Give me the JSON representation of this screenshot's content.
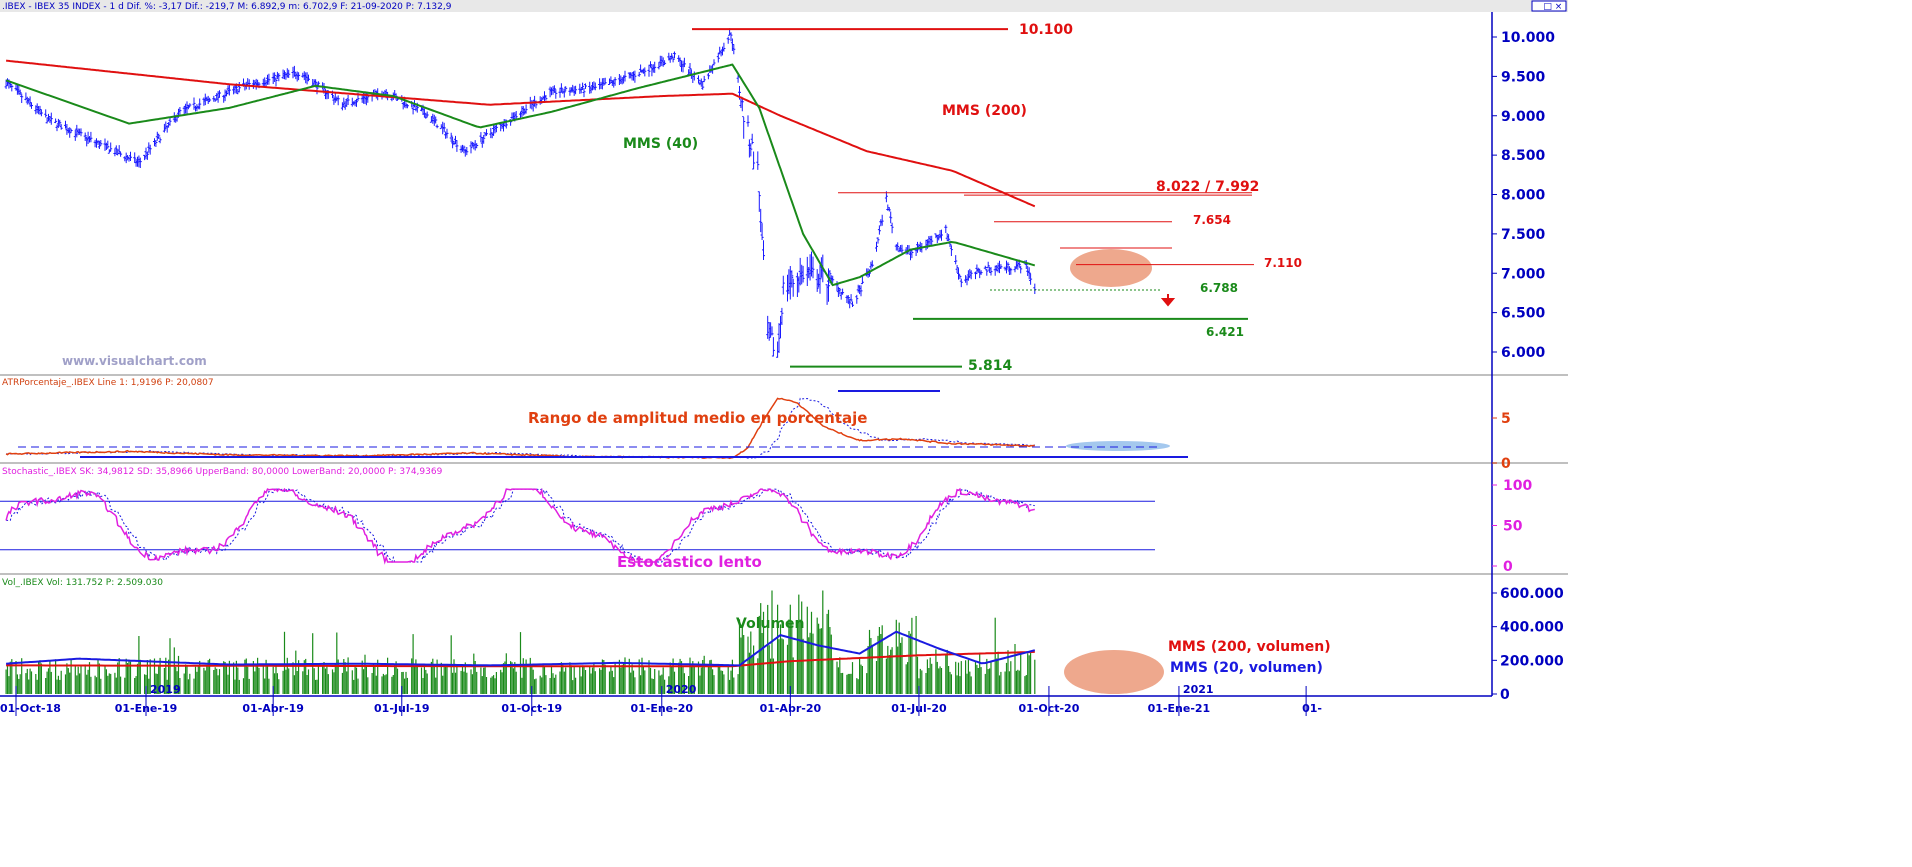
{
  "headers": {
    "price": ".IBEX - IBEX 35 INDEX - 1 d Dif. %: -3,17  Dif.: -219,7  M: 6.892,9  m: 6.702,9  F: 21-09-2020  P: 7.132,9",
    "atr": "ATRPorcentaje_.IBEX  Line 1: 1,9196  P: 20,0807",
    "stoch": "Stochastic_.IBEX  SK: 34,9812  SD: 35,8966  UpperBand: 80,0000  LowerBand: 20,0000  P: 374,9369",
    "vol": "Vol_.IBEX  Vol: 131.752  P: 2.509.030"
  },
  "watermark": "www.visualchart.com",
  "window_controls": "_ □ ×",
  "colors": {
    "bars": "#1a1aff",
    "sma40": "#1a8a1a",
    "sma200": "#e01010",
    "atr": "#e04010",
    "stoch": "#e020e0",
    "vol": "#1a8a1a",
    "vol_sma20": "#1a1ae0",
    "axis": "#0000c0"
  },
  "annotations": {
    "level_10100": "10.100",
    "mms200": "MMS (200)",
    "mms40": "MMS (40)",
    "level_8022": "8.022 / 7.992",
    "level_7654": "7.654",
    "level_7110": "7.110",
    "level_6788": "6.788",
    "level_6421": "6.421",
    "level_5814": "5.814",
    "atr_label": "Rango de amplitud medio en porcentaje",
    "stoch_label": "Estocástico lento",
    "vol_label": "Volumen",
    "vol_sma200": "MMS (200, volumen)",
    "vol_sma20": "MMS (20, volumen)"
  },
  "x_axis": {
    "labels": [
      "01-Oct-18",
      "01-Ene-19",
      "01-Abr-19",
      "01-Jul-19",
      "01-Oct-19",
      "01-Ene-20",
      "01-Abr-20",
      "01-Jul-20",
      "01-Oct-20",
      "01-Ene-21",
      "01-"
    ],
    "year_markers": [
      "2019",
      "2020",
      "2021"
    ]
  },
  "chart_data": [
    {
      "type": "ohlc",
      "name": "price",
      "y_ticks": [
        "10.000",
        "9.500",
        "9.000",
        "8.500",
        "8.000",
        "7.500",
        "7.000",
        "6.500",
        "6.000"
      ],
      "ylim": [
        5800,
        10200
      ],
      "anchors": [
        {
          "date": "2018-09-24",
          "close": 9420
        },
        {
          "date": "2018-10-24",
          "close": 8950
        },
        {
          "date": "2018-12-27",
          "close": 8400
        },
        {
          "date": "2019-01-25",
          "close": 9050
        },
        {
          "date": "2019-03-15",
          "close": 9400
        },
        {
          "date": "2019-04-20",
          "close": 9550
        },
        {
          "date": "2019-05-20",
          "close": 9150
        },
        {
          "date": "2019-06-20",
          "close": 9300
        },
        {
          "date": "2019-07-20",
          "close": 9000
        },
        {
          "date": "2019-08-15",
          "close": 8550
        },
        {
          "date": "2019-09-15",
          "close": 8950
        },
        {
          "date": "2019-10-15",
          "close": 9300
        },
        {
          "date": "2019-11-15",
          "close": 9350
        },
        {
          "date": "2019-12-10",
          "close": 9500
        },
        {
          "date": "2020-01-10",
          "close": 9750
        },
        {
          "date": "2020-01-30",
          "close": 9400
        },
        {
          "date": "2020-02-19",
          "close": 10050
        },
        {
          "date": "2020-02-28",
          "close": 9000
        },
        {
          "date": "2020-03-09",
          "close": 8300
        },
        {
          "date": "2020-03-16",
          "close": 6200
        },
        {
          "date": "2020-03-23",
          "close": 6000
        },
        {
          "date": "2020-03-27",
          "close": 6800
        },
        {
          "date": "2020-04-10",
          "close": 7000
        },
        {
          "date": "2020-05-01",
          "close": 6900
        },
        {
          "date": "2020-05-15",
          "close": 6600
        },
        {
          "date": "2020-05-29",
          "close": 7100
        },
        {
          "date": "2020-06-08",
          "close": 7950
        },
        {
          "date": "2020-06-15",
          "close": 7350
        },
        {
          "date": "2020-06-25",
          "close": 7250
        },
        {
          "date": "2020-07-08",
          "close": 7400
        },
        {
          "date": "2020-07-20",
          "close": 7550
        },
        {
          "date": "2020-07-31",
          "close": 6900
        },
        {
          "date": "2020-08-15",
          "close": 7050
        },
        {
          "date": "2020-09-15",
          "close": 7100
        },
        {
          "date": "2020-09-21",
          "close": 6800
        }
      ],
      "sma40_anchors": [
        {
          "date": "2018-09-24",
          "value": 9450
        },
        {
          "date": "2018-12-20",
          "value": 8900
        },
        {
          "date": "2019-03-01",
          "value": 9100
        },
        {
          "date": "2019-05-01",
          "value": 9380
        },
        {
          "date": "2019-06-25",
          "value": 9250
        },
        {
          "date": "2019-08-25",
          "value": 8850
        },
        {
          "date": "2019-10-15",
          "value": 9050
        },
        {
          "date": "2019-12-15",
          "value": 9350
        },
        {
          "date": "2020-02-20",
          "value": 9650
        },
        {
          "date": "2020-03-10",
          "value": 9100
        },
        {
          "date": "2020-04-10",
          "value": 7500
        },
        {
          "date": "2020-05-01",
          "value": 6850
        },
        {
          "date": "2020-05-20",
          "value": 6950
        },
        {
          "date": "2020-06-25",
          "value": 7300
        },
        {
          "date": "2020-07-25",
          "value": 7400
        },
        {
          "date": "2020-09-21",
          "value": 7100
        }
      ],
      "sma200_anchors": [
        {
          "date": "2018-09-24",
          "value": 9700
        },
        {
          "date": "2019-03-01",
          "value": 9400
        },
        {
          "date": "2019-09-01",
          "value": 9140
        },
        {
          "date": "2020-01-01",
          "value": 9250
        },
        {
          "date": "2020-02-20",
          "value": 9280
        },
        {
          "date": "2020-03-25",
          "value": 9000
        },
        {
          "date": "2020-05-25",
          "value": 8550
        },
        {
          "date": "2020-07-25",
          "value": 8300
        },
        {
          "date": "2020-09-21",
          "value": 7850
        }
      ],
      "levels": [
        10100,
        8022,
        7992,
        7654,
        7110,
        6788,
        6421,
        5814
      ]
    },
    {
      "type": "line",
      "name": "atr",
      "y_ticks": [
        "5",
        "0"
      ],
      "ylim": [
        0,
        8
      ],
      "anchors": [
        {
          "date": "2018-09-24",
          "value": 1.0
        },
        {
          "date": "2018-12-20",
          "value": 1.3
        },
        {
          "date": "2019-03-01",
          "value": 0.9
        },
        {
          "date": "2019-06-01",
          "value": 0.8
        },
        {
          "date": "2019-08-20",
          "value": 1.1
        },
        {
          "date": "2019-11-01",
          "value": 0.7
        },
        {
          "date": "2020-02-20",
          "value": 0.6
        },
        {
          "date": "2020-03-01",
          "value": 1.5
        },
        {
          "date": "2020-03-12",
          "value": 4.5
        },
        {
          "date": "2020-03-23",
          "value": 7.2
        },
        {
          "date": "2020-04-05",
          "value": 6.8
        },
        {
          "date": "2020-04-25",
          "value": 4.0
        },
        {
          "date": "2020-05-20",
          "value": 2.5
        },
        {
          "date": "2020-06-20",
          "value": 2.7
        },
        {
          "date": "2020-07-20",
          "value": 2.2
        },
        {
          "date": "2020-09-21",
          "value": 1.9
        }
      ]
    },
    {
      "type": "line",
      "name": "stochastic",
      "y_ticks": [
        "100",
        "50",
        "0"
      ],
      "ylim": [
        0,
        100
      ],
      "bands": [
        80,
        20
      ]
    },
    {
      "type": "bar",
      "name": "volume",
      "y_ticks": [
        "600.000",
        "400.000",
        "200.000",
        "0"
      ],
      "ylim": [
        0,
        620000
      ],
      "sma200_anchors": [
        {
          "date": "2018-09-24",
          "value": 170000
        },
        {
          "date": "2019-09-01",
          "value": 165000
        },
        {
          "date": "2020-02-20",
          "value": 165000
        },
        {
          "date": "2020-04-01",
          "value": 195000
        },
        {
          "date": "2020-07-01",
          "value": 230000
        },
        {
          "date": "2020-09-21",
          "value": 250000
        }
      ],
      "sma20_anchors": [
        {
          "date": "2018-09-24",
          "value": 180000
        },
        {
          "date": "2018-11-15",
          "value": 210000
        },
        {
          "date": "2019-03-01",
          "value": 175000
        },
        {
          "date": "2019-06-01",
          "value": 180000
        },
        {
          "date": "2019-09-01",
          "value": 170000
        },
        {
          "date": "2019-12-01",
          "value": 185000
        },
        {
          "date": "2020-02-25",
          "value": 170000
        },
        {
          "date": "2020-03-25",
          "value": 350000
        },
        {
          "date": "2020-04-20",
          "value": 290000
        },
        {
          "date": "2020-05-20",
          "value": 240000
        },
        {
          "date": "2020-06-15",
          "value": 370000
        },
        {
          "date": "2020-07-15",
          "value": 270000
        },
        {
          "date": "2020-08-15",
          "value": 180000
        },
        {
          "date": "2020-09-21",
          "value": 260000
        }
      ]
    }
  ]
}
